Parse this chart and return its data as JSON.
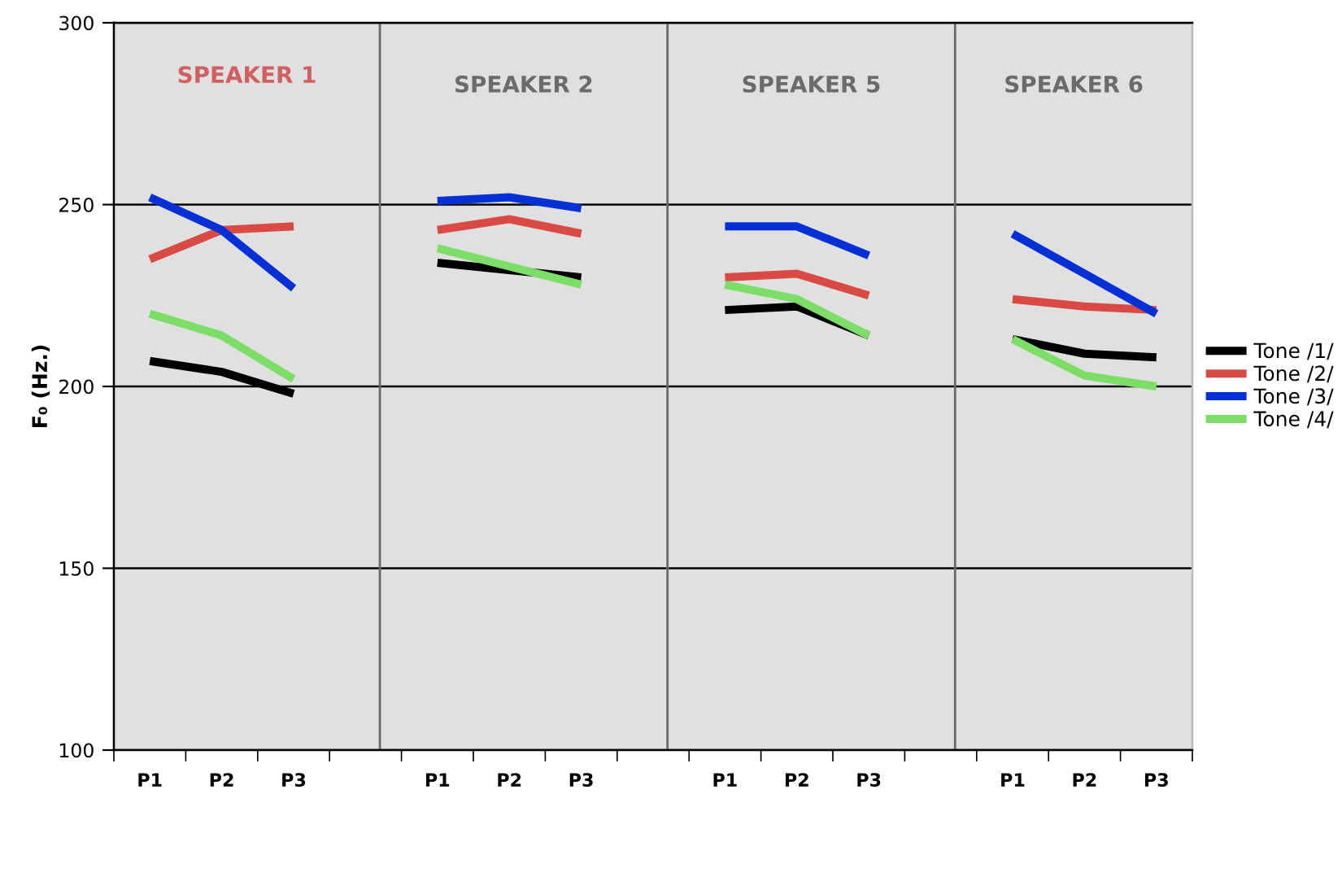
{
  "chart_data": {
    "type": "line",
    "ylabel": "F₀ (Hz.)",
    "categories": [
      "P1",
      "P2",
      "P3",
      null,
      "P1",
      "P2",
      "P3",
      null,
      "P1",
      "P2",
      "P3",
      null,
      "P1",
      "P2",
      "P3"
    ],
    "series": [
      {
        "name": "Tone /1/",
        "color": "#000000",
        "values": [
          207,
          204,
          198,
          null,
          234,
          232,
          230,
          null,
          221,
          222,
          214,
          null,
          213,
          209,
          208
        ]
      },
      {
        "name": "Tone /2/",
        "color": "#d94a45",
        "values": [
          235,
          243,
          244,
          null,
          243,
          246,
          242,
          null,
          230,
          231,
          225,
          null,
          224,
          222,
          221
        ]
      },
      {
        "name": "Tone /3/",
        "color": "#0530d6",
        "values": [
          252,
          243,
          227,
          null,
          251,
          252,
          249,
          null,
          244,
          244,
          236,
          null,
          242,
          231,
          220
        ]
      },
      {
        "name": "Tone /4/",
        "color": "#7cde66",
        "values": [
          220,
          214,
          202,
          null,
          238,
          233,
          228,
          null,
          228,
          224,
          214,
          null,
          213,
          203,
          200
        ]
      }
    ],
    "ylim": [
      100,
      300
    ],
    "yticks": [
      100,
      150,
      200,
      250,
      300
    ],
    "grid": "y",
    "legend": "right",
    "ref_lines": [
      {
        "axis": "x",
        "color": "#6a6a6a"
      },
      {
        "axis": "x",
        "color": "#6a6a6a"
      },
      {
        "axis": "x",
        "color": "#6a6a6a"
      }
    ],
    "annotations": [
      "SPEAKER 1",
      "SPEAKER 2",
      "SPEAKER 5",
      "SPEAKER 6"
    ]
  }
}
